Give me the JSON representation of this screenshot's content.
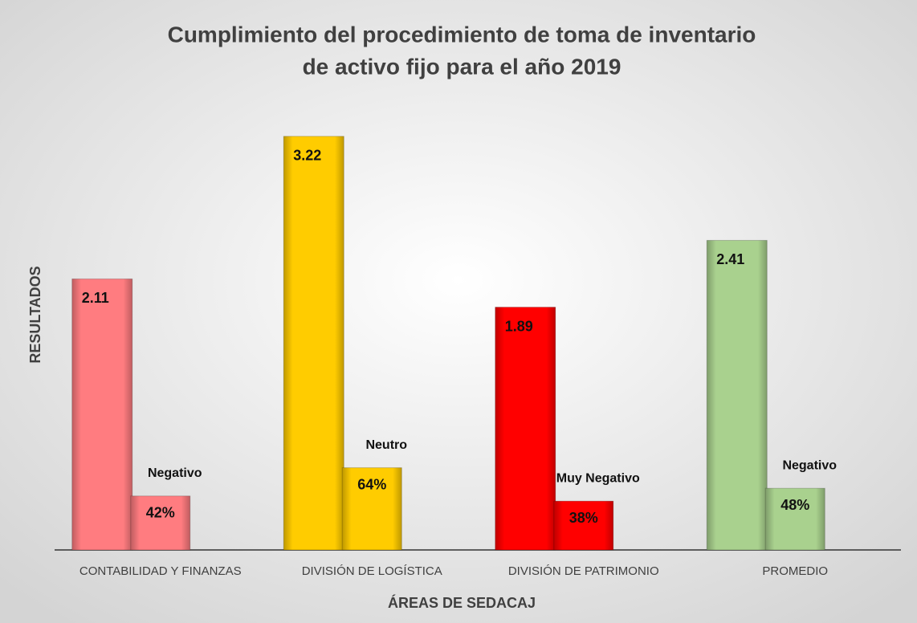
{
  "chart_data": {
    "type": "bar",
    "title": [
      "Cumplimiento del procedimiento de toma de inventario",
      "de activo fijo para el año 2019"
    ],
    "x_label": "ÁREAS DE SEDACAJ",
    "y_label": "RESULTADOS",
    "categories": [
      "CONTABILIDAD Y FINANZAS",
      "DIVISIÓN DE LOGÍSTICA",
      "DIVISIÓN DE PATRIMONIO",
      "PROMEDIO"
    ],
    "colors": [
      "#ff7c80",
      "#ffcc00",
      "#ff0000",
      "#a9d18e"
    ],
    "series": [
      {
        "values": [
          2.11,
          3.22,
          1.89,
          2.41
        ]
      },
      {
        "values": [
          42,
          64,
          38,
          48
        ],
        "value_labels": [
          "42%",
          "64%",
          "38%",
          "48%"
        ],
        "axis": "y2"
      }
    ],
    "annotations": [
      "Negativo",
      "Neutro",
      "Muy Negativo",
      "Negativo"
    ],
    "ylim": [
      0,
      3.5
    ],
    "y2lim": [
      0,
      350
    ]
  }
}
